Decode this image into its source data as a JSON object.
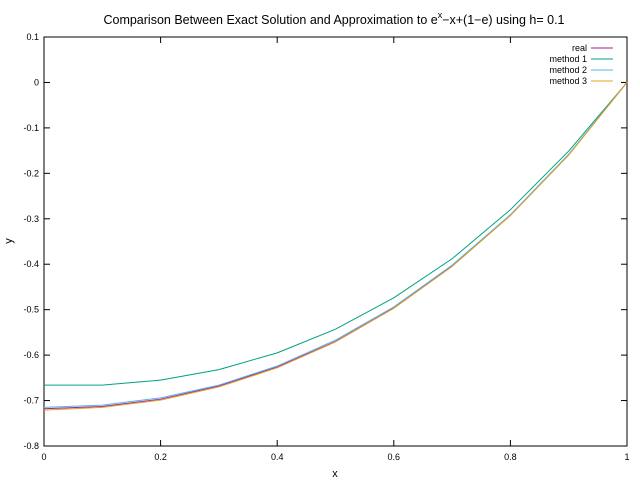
{
  "chart_data": {
    "type": "line",
    "title": {
      "prefix": "Comparison Between Exact Solution and Approximation to e",
      "superscript": "x",
      "suffix": "−x+(1−e) using h= 0.1"
    },
    "xlabel": "x",
    "ylabel": "y",
    "xlim": [
      0,
      1
    ],
    "ylim": [
      -0.8,
      0.1
    ],
    "x_ticks": [
      0,
      0.2,
      0.4,
      0.6,
      0.8,
      1
    ],
    "x_tick_labels": [
      "0",
      "0.2",
      "0.4",
      "0.6",
      "0.8",
      "1"
    ],
    "y_ticks": [
      0.1,
      0,
      -0.1,
      -0.2,
      -0.3,
      -0.4,
      -0.5,
      -0.6,
      -0.7,
      -0.8
    ],
    "y_tick_labels": [
      "0.1",
      "0",
      "-0.1",
      "-0.2",
      "-0.3",
      "-0.4",
      "-0.5",
      "-0.6",
      "-0.7",
      "-0.8"
    ],
    "grid": false,
    "legend_position": "top-right",
    "x": [
      0,
      0.1,
      0.2,
      0.3,
      0.4,
      0.5,
      0.6,
      0.7,
      0.8,
      0.9,
      1.0
    ],
    "series": [
      {
        "name": "real",
        "color": "#a020a0",
        "values": [
          -0.718,
          -0.713,
          -0.697,
          -0.668,
          -0.626,
          -0.57,
          -0.496,
          -0.404,
          -0.292,
          -0.159,
          0.0
        ]
      },
      {
        "name": "method 1",
        "color": "#00a080",
        "values": [
          -0.666,
          -0.666,
          -0.655,
          -0.632,
          -0.595,
          -0.543,
          -0.474,
          -0.388,
          -0.28,
          -0.151,
          0.0
        ]
      },
      {
        "name": "method 2",
        "color": "#58b4e8",
        "values": [
          -0.715,
          -0.71,
          -0.694,
          -0.666,
          -0.624,
          -0.567,
          -0.494,
          -0.402,
          -0.291,
          -0.158,
          0.0
        ]
      },
      {
        "name": "method 3",
        "color": "#e8a020",
        "values": [
          -0.721,
          -0.715,
          -0.699,
          -0.67,
          -0.628,
          -0.571,
          -0.497,
          -0.405,
          -0.293,
          -0.16,
          0.0
        ]
      }
    ]
  }
}
